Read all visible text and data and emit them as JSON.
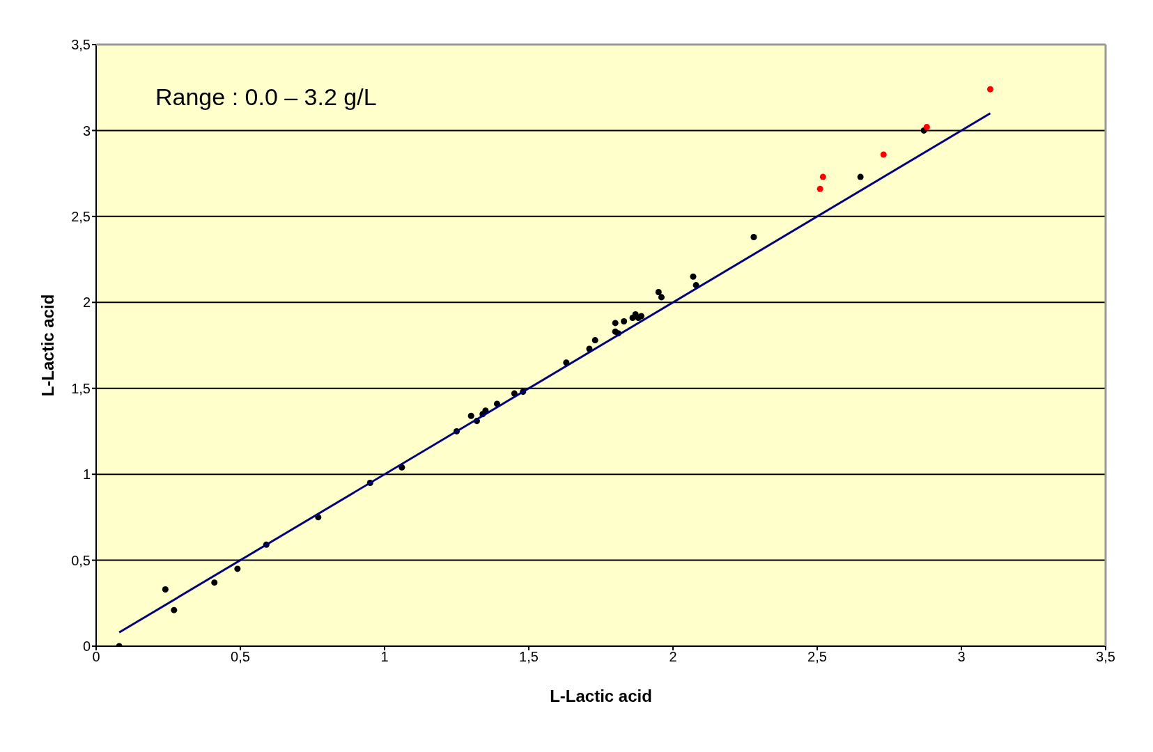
{
  "chart_data": {
    "type": "scatter",
    "xlabel": "L-Lactic acid",
    "ylabel": "L-Lactic acid",
    "annotations": [
      "Range : 0.0 – 3.2 g/L"
    ],
    "xlim": [
      0,
      3.5
    ],
    "ylim": [
      0,
      3.5
    ],
    "xticks": [
      0,
      {
        "value": 0.5,
        "label": "0,5"
      },
      1,
      {
        "value": 1.5,
        "label": "1,5"
      },
      2,
      {
        "value": 2.5,
        "label": "2,5"
      },
      3,
      {
        "value": 3.5,
        "label": "3,5"
      }
    ],
    "yticks": [
      0,
      {
        "value": 0.5,
        "label": "0,5"
      },
      1,
      {
        "value": 1.5,
        "label": "1,5"
      },
      2,
      {
        "value": 2.5,
        "label": "2,5"
      },
      3,
      {
        "value": 3.5,
        "label": "3,5"
      }
    ],
    "grid": "y",
    "marker": "circle",
    "series": [
      {
        "color": "#000000",
        "x": [
          0.08,
          0.24,
          0.27,
          0.41,
          0.49,
          0.59,
          0.77,
          0.95,
          1.06,
          1.25,
          1.3,
          1.32,
          1.34,
          1.35,
          1.39,
          1.45,
          1.48,
          1.63,
          1.71,
          1.73,
          1.8,
          1.8,
          1.81,
          1.83,
          1.86,
          1.87,
          1.88,
          1.89,
          1.95,
          1.96,
          2.07,
          2.08,
          2.28,
          2.65,
          2.87
        ],
        "values": [
          0.0,
          0.33,
          0.21,
          0.37,
          0.45,
          0.59,
          0.75,
          0.95,
          1.04,
          1.25,
          1.34,
          1.31,
          1.35,
          1.37,
          1.41,
          1.47,
          1.48,
          1.65,
          1.73,
          1.78,
          1.88,
          1.83,
          1.82,
          1.89,
          1.91,
          1.93,
          1.91,
          1.92,
          2.06,
          2.03,
          2.15,
          2.1,
          2.38,
          2.73,
          3.0
        ]
      },
      {
        "color": "#ff0000",
        "x": [
          2.51,
          2.52,
          2.73,
          2.88,
          3.1
        ],
        "values": [
          2.66,
          2.73,
          2.86,
          3.02,
          3.24
        ]
      },
      {
        "type": "line",
        "marker": "none",
        "color": "#000080",
        "x": [
          0.08,
          3.1
        ],
        "values": [
          0.08,
          3.1
        ]
      }
    ]
  }
}
